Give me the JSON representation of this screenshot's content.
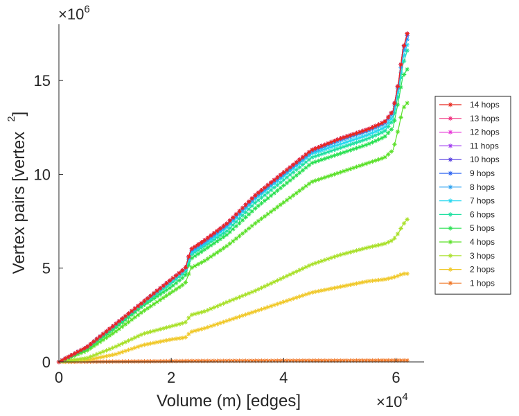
{
  "chart_data": {
    "type": "line",
    "title": "",
    "xlabel": "Volume (m) [edges]",
    "ylabel_main": "Vertex pairs [vertex",
    "ylabel_sup": "2",
    "ylabel_close": "]",
    "x_exponent_label": "×10",
    "x_exponent_power": "4",
    "y_exponent_label": "×10",
    "y_exponent_power": "6",
    "xlim": [
      0,
      6.5
    ],
    "ylim": [
      0,
      18
    ],
    "xticks": [
      0,
      2,
      4,
      6
    ],
    "xtick_labels": [
      "0",
      "2",
      "4",
      "6"
    ],
    "yticks": [
      0,
      5,
      10,
      15
    ],
    "ytick_labels": [
      "0",
      "5",
      "10",
      "15"
    ],
    "legend_position": "right",
    "x": [
      0,
      0.5,
      1.0,
      1.5,
      2.0,
      2.25,
      2.35,
      2.6,
      3.0,
      3.5,
      4.0,
      4.5,
      5.0,
      5.5,
      5.8,
      5.95,
      6.05,
      6.12,
      6.2
    ],
    "series": [
      {
        "name": "14 hops",
        "color": "#e8281e",
        "values": [
          0,
          0.8,
          2.0,
          3.2,
          4.4,
          5.0,
          6.0,
          6.5,
          7.4,
          8.9,
          10.1,
          11.3,
          11.9,
          12.4,
          12.8,
          13.4,
          15.0,
          16.6,
          17.5
        ]
      },
      {
        "name": "13 hops",
        "color": "#f0287a",
        "values": [
          0,
          0.8,
          2.0,
          3.2,
          4.4,
          5.0,
          6.0,
          6.5,
          7.4,
          8.9,
          10.1,
          11.3,
          11.9,
          12.4,
          12.8,
          13.4,
          15.0,
          16.6,
          17.5
        ]
      },
      {
        "name": "12 hops",
        "color": "#e838d8",
        "values": [
          0,
          0.8,
          2.0,
          3.2,
          4.4,
          5.0,
          6.0,
          6.5,
          7.4,
          8.9,
          10.1,
          11.3,
          11.9,
          12.4,
          12.8,
          13.4,
          15.0,
          16.6,
          17.5
        ]
      },
      {
        "name": "11 hops",
        "color": "#a03cf0",
        "values": [
          0,
          0.8,
          2.0,
          3.2,
          4.4,
          5.0,
          6.0,
          6.5,
          7.4,
          8.9,
          10.1,
          11.3,
          11.9,
          12.4,
          12.8,
          13.4,
          15.0,
          16.6,
          17.5
        ]
      },
      {
        "name": "10 hops",
        "color": "#5038e0",
        "values": [
          0,
          0.8,
          2.0,
          3.2,
          4.4,
          5.0,
          6.0,
          6.5,
          7.4,
          8.9,
          10.1,
          11.3,
          11.9,
          12.4,
          12.8,
          13.4,
          15.0,
          16.6,
          17.5
        ]
      },
      {
        "name": "9 hops",
        "color": "#2860f0",
        "values": [
          0,
          0.8,
          2.0,
          3.2,
          4.4,
          5.0,
          6.0,
          6.5,
          7.4,
          8.9,
          10.1,
          11.3,
          11.9,
          12.4,
          12.8,
          13.4,
          15.0,
          16.6,
          17.4
        ]
      },
      {
        "name": "8 hops",
        "color": "#28a0f0",
        "values": [
          0,
          0.8,
          2.0,
          3.2,
          4.4,
          5.0,
          5.9,
          6.4,
          7.3,
          8.8,
          10.0,
          11.2,
          11.8,
          12.3,
          12.7,
          13.3,
          14.9,
          16.4,
          17.2
        ]
      },
      {
        "name": "7 hops",
        "color": "#28d8f0",
        "values": [
          0,
          0.8,
          2.0,
          3.2,
          4.3,
          4.9,
          5.8,
          6.3,
          7.2,
          8.7,
          9.9,
          11.1,
          11.6,
          12.1,
          12.5,
          13.1,
          14.7,
          16.1,
          16.9
        ]
      },
      {
        "name": "6 hops",
        "color": "#1ee0a0",
        "values": [
          0,
          0.8,
          1.9,
          3.1,
          4.2,
          4.8,
          5.7,
          6.2,
          7.0,
          8.5,
          9.7,
          10.9,
          11.4,
          11.9,
          12.3,
          12.9,
          14.4,
          15.8,
          16.6
        ]
      },
      {
        "name": "5 hops",
        "color": "#28e050",
        "values": [
          0,
          0.7,
          1.8,
          3.0,
          4.0,
          4.6,
          5.5,
          6.0,
          6.8,
          8.2,
          9.4,
          10.6,
          11.1,
          11.6,
          12.0,
          12.5,
          14.0,
          15.2,
          15.6
        ]
      },
      {
        "name": "4 hops",
        "color": "#5ae028",
        "values": [
          0,
          0.6,
          1.6,
          2.7,
          3.7,
          4.2,
          5.0,
          5.4,
          6.2,
          7.4,
          8.5,
          9.6,
          10.1,
          10.6,
          10.9,
          11.3,
          12.5,
          13.5,
          13.8
        ]
      },
      {
        "name": "3 hops",
        "color": "#a8e028",
        "values": [
          0,
          0.2,
          0.8,
          1.5,
          1.9,
          2.1,
          2.5,
          2.7,
          3.2,
          3.8,
          4.5,
          5.2,
          5.7,
          6.1,
          6.3,
          6.5,
          6.9,
          7.3,
          7.6
        ]
      },
      {
        "name": "2 hops",
        "color": "#f0c828",
        "values": [
          0,
          0.1,
          0.4,
          0.9,
          1.2,
          1.3,
          1.6,
          1.8,
          2.2,
          2.7,
          3.2,
          3.7,
          4.0,
          4.3,
          4.4,
          4.5,
          4.6,
          4.7,
          4.7
        ]
      },
      {
        "name": "1 hops",
        "color": "#f07828",
        "values": [
          0,
          0.01,
          0.02,
          0.03,
          0.04,
          0.045,
          0.05,
          0.05,
          0.055,
          0.06,
          0.065,
          0.07,
          0.07,
          0.075,
          0.08,
          0.08,
          0.08,
          0.08,
          0.08
        ]
      }
    ]
  }
}
